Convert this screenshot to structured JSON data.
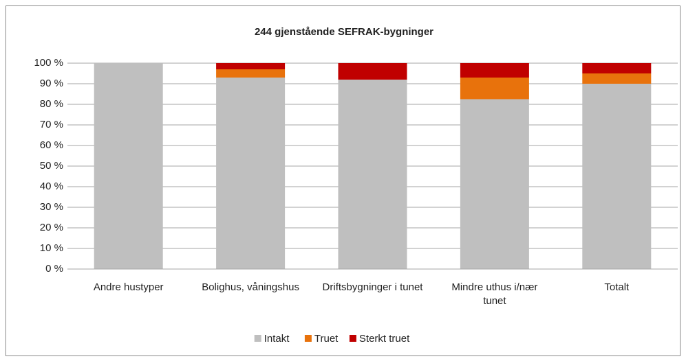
{
  "chart_data": {
    "type": "stacked_bar",
    "title": "244 gjenstående SEFRAK-bygninger",
    "categories": [
      "Andre hustyper",
      "Bolighus, våningshus",
      "Driftsbygninger i tunet",
      "Mindre uthus i/nær tunet",
      "Totalt"
    ],
    "series": [
      {
        "name": "Intakt",
        "color": "#bfbfbf",
        "values": [
          100,
          93,
          92,
          82.5,
          90
        ]
      },
      {
        "name": "Truet",
        "color": "#e8720c",
        "values": [
          0,
          4,
          0,
          10.5,
          5
        ]
      },
      {
        "name": "Sterkt truet",
        "color": "#c00000",
        "values": [
          0,
          3,
          8,
          7,
          5
        ]
      }
    ],
    "ylim": [
      0,
      100
    ],
    "yticks": [
      {
        "value": 0,
        "label": "0 %"
      },
      {
        "value": 10,
        "label": "10 %"
      },
      {
        "value": 20,
        "label": "20 %"
      },
      {
        "value": 30,
        "label": "30 %"
      },
      {
        "value": 40,
        "label": "40 %"
      },
      {
        "value": 50,
        "label": "50 %"
      },
      {
        "value": 60,
        "label": "60 %"
      },
      {
        "value": 70,
        "label": "70 %"
      },
      {
        "value": 80,
        "label": "80 %"
      },
      {
        "value": 90,
        "label": "90 %"
      },
      {
        "value": 100,
        "label": "100 %"
      }
    ],
    "grid": true,
    "legend": "bottom"
  }
}
